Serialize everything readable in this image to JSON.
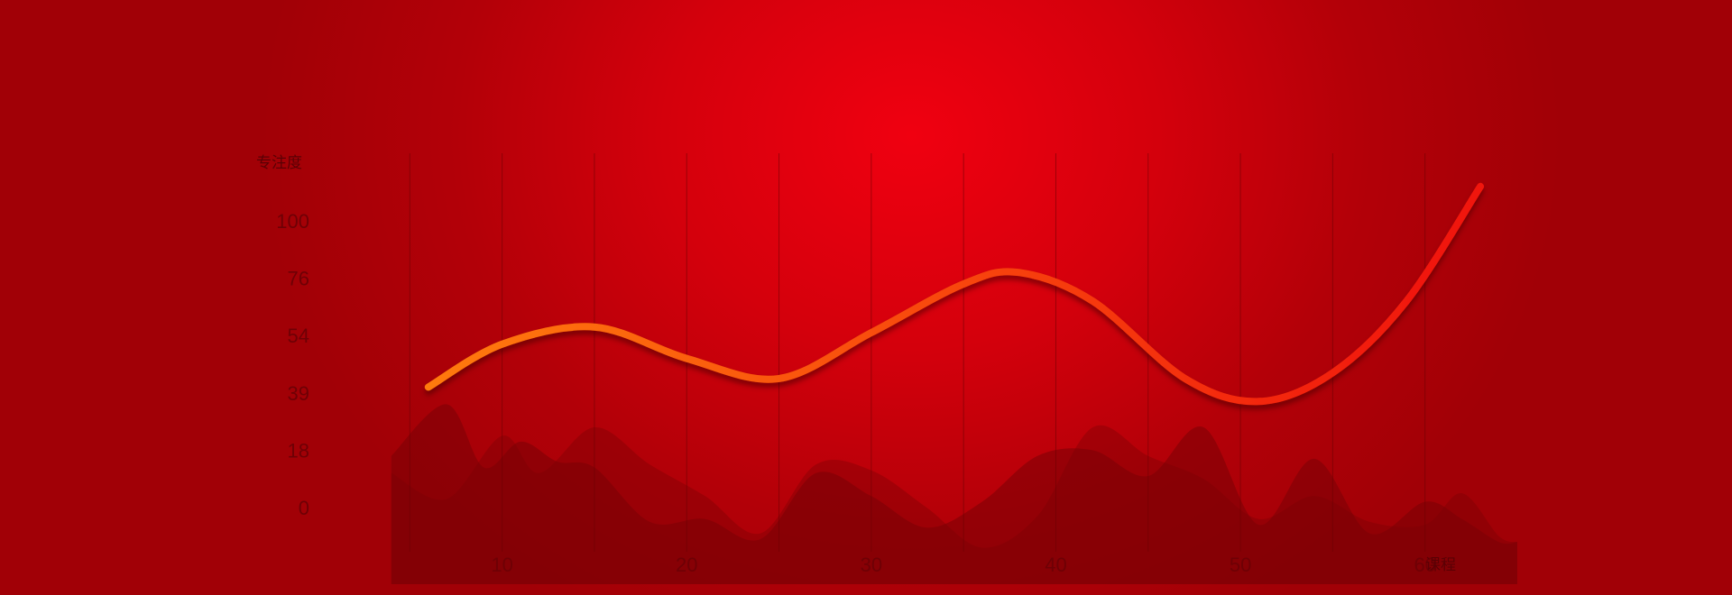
{
  "chart_data": {
    "type": "line",
    "title": "",
    "ylabel": "专注度",
    "xlabel": "课程",
    "y_ticks": [
      "0",
      "18",
      "39",
      "54",
      "76",
      "100"
    ],
    "x_ticks": [
      "10",
      "20",
      "30",
      "40",
      "50",
      "60"
    ],
    "series": [
      {
        "x": [
          6,
          10,
          15,
          20,
          25,
          30,
          35,
          38,
          42,
          47,
          51,
          55,
          59,
          63
        ],
        "y": [
          42,
          57,
          63,
          52,
          45,
          61,
          78,
          82,
          72,
          45,
          37,
          47,
          72,
          112
        ]
      }
    ],
    "background_areas": [
      {
        "x": [
          4,
          7,
          9,
          11,
          13,
          15,
          18,
          21,
          24,
          27,
          30,
          33,
          36,
          39,
          42,
          45,
          48,
          51,
          54,
          57,
          60,
          62,
          64,
          65
        ],
        "y": [
          18,
          36,
          14,
          23,
          16,
          14,
          -5,
          -4,
          -11,
          12,
          4,
          -7,
          2,
          18,
          20,
          11,
          28,
          -6,
          17,
          -9,
          2,
          -4,
          -12,
          -12
        ]
      },
      {
        "x": [
          4,
          7,
          10,
          12,
          15,
          18,
          21,
          24,
          27,
          30,
          33,
          36,
          39,
          42,
          45,
          48,
          51,
          54,
          57,
          60,
          62,
          64,
          65
        ],
        "y": [
          12,
          3,
          25,
          12,
          28,
          15,
          4,
          -9,
          15,
          13,
          0,
          -14,
          -3,
          28,
          18,
          10,
          -4,
          4,
          -5,
          -6,
          5,
          -10,
          -12
        ]
      }
    ],
    "ylim": [
      -30,
      112
    ],
    "xlim": [
      0,
      65
    ],
    "grid": "vertical",
    "colors": {
      "line_start": "#ff7a0a",
      "line_end": "#f01208",
      "area": "#7a0006",
      "grid": "#6a0004",
      "tick": "#6e0005"
    }
  }
}
